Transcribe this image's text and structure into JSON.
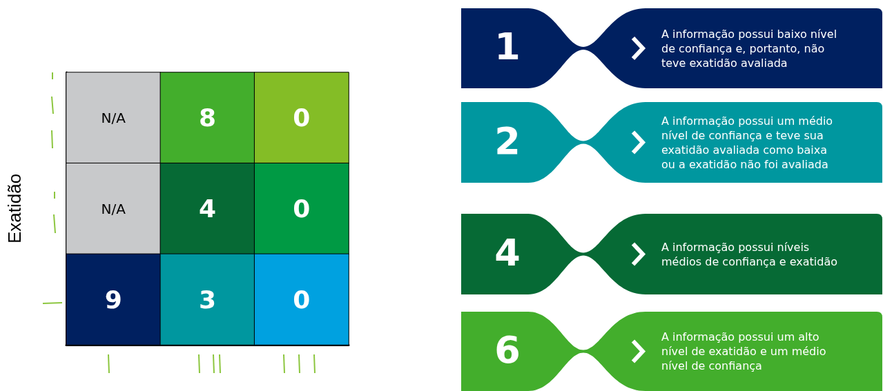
{
  "chart_data": [
    {
      "type": "heatmap",
      "ylabel": "Exatidão",
      "categories": [
        null,
        null,
        null
      ],
      "y_categories": [
        null,
        null,
        null
      ],
      "cells": [
        [
          null,
          8,
          0
        ],
        [
          null,
          4,
          0
        ],
        [
          9,
          3,
          0
        ]
      ],
      "data_labels": true,
      "annotations": [
        "N/A",
        "N/A"
      ],
      "colors": [
        [
          "#c8c9cb",
          "#43ae2c",
          "#84bd26"
        ],
        [
          "#c8c9cb",
          "#066a35",
          "#009a44"
        ],
        [
          "#002060",
          "#00979f",
          "#00a1e0"
        ]
      ]
    },
    {
      "type": "other",
      "categories": [
        "1",
        "2",
        "4",
        "6"
      ],
      "colors": [
        "#002060",
        "#00979f",
        "#066a35",
        "#43ae2c"
      ],
      "annotations": [
        "A informação possui baixo nível de confiança e, portanto, não teve exatidão avaliada",
        "A informação possui um médio nível de confiança e teve sua exatidão avaliada como baixa ou a exatidão não foi avaliada",
        "A informação possui níveis médios de confiança e exatidão",
        "A informação possui um alto nível de exatidão e um médio nível de confiança"
      ]
    }
  ]
}
